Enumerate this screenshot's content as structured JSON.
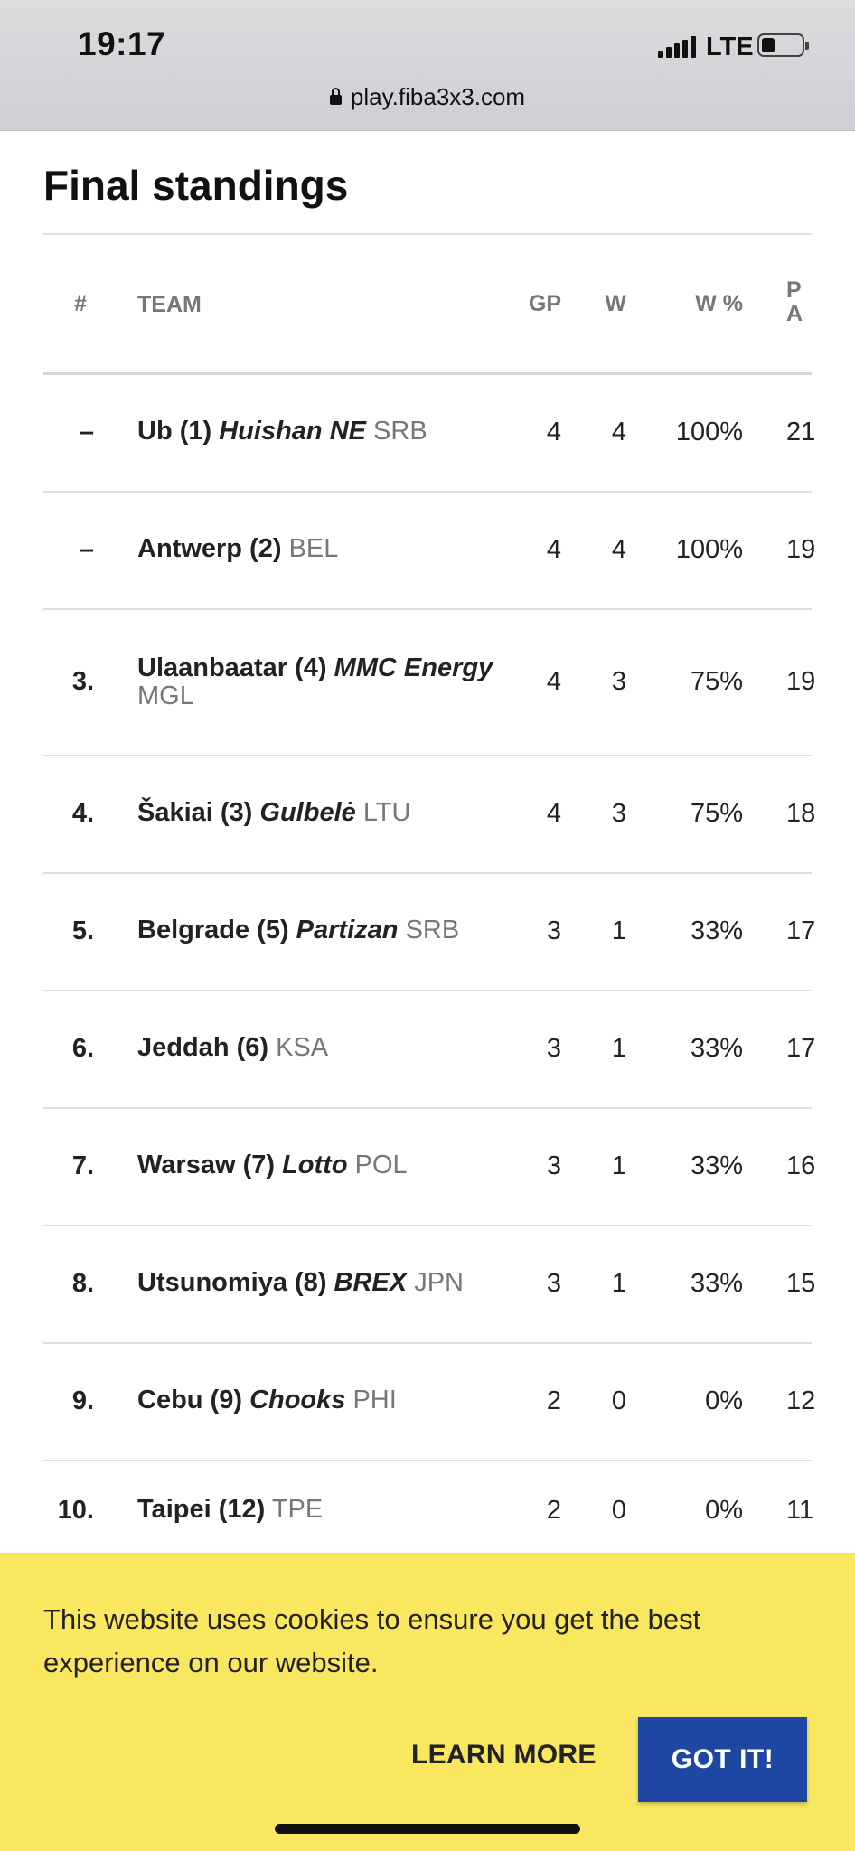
{
  "status_bar": {
    "time": "19:17",
    "network": "LTE"
  },
  "browser": {
    "url": "play.fiba3x3.com"
  },
  "page": {
    "title": "Final standings"
  },
  "table": {
    "headers": {
      "rank": "#",
      "team": "TEAM",
      "gp": "GP",
      "w": "W",
      "wp": "W %",
      "pts_line1": "P",
      "pts_line2": "A"
    },
    "rows": [
      {
        "rank": "–",
        "name": "Ub (1)",
        "sponsor": "Huishan NE",
        "country": "SRB",
        "gp": "4",
        "w": "4",
        "wp": "100%",
        "pts": "21"
      },
      {
        "rank": "–",
        "name": "Antwerp (2)",
        "sponsor": "",
        "country": "BEL",
        "gp": "4",
        "w": "4",
        "wp": "100%",
        "pts": "19"
      },
      {
        "rank": "3.",
        "name": "Ulaanbaatar (4)",
        "sponsor": "MMC Energy",
        "country": "MGL",
        "gp": "4",
        "w": "3",
        "wp": "75%",
        "pts": "19"
      },
      {
        "rank": "4.",
        "name": "Šakiai (3)",
        "sponsor": "Gulbelė",
        "country": "LTU",
        "gp": "4",
        "w": "3",
        "wp": "75%",
        "pts": "18"
      },
      {
        "rank": "5.",
        "name": "Belgrade (5)",
        "sponsor": "Partizan",
        "country": "SRB",
        "gp": "3",
        "w": "1",
        "wp": "33%",
        "pts": "17"
      },
      {
        "rank": "6.",
        "name": "Jeddah (6)",
        "sponsor": "",
        "country": "KSA",
        "gp": "3",
        "w": "1",
        "wp": "33%",
        "pts": "17"
      },
      {
        "rank": "7.",
        "name": "Warsaw (7)",
        "sponsor": "Lotto",
        "country": "POL",
        "gp": "3",
        "w": "1",
        "wp": "33%",
        "pts": "16"
      },
      {
        "rank": "8.",
        "name": "Utsunomiya (8)",
        "sponsor": "BREX",
        "country": "JPN",
        "gp": "3",
        "w": "1",
        "wp": "33%",
        "pts": "15"
      },
      {
        "rank": "9.",
        "name": "Cebu (9)",
        "sponsor": "Chooks",
        "country": "PHI",
        "gp": "2",
        "w": "0",
        "wp": "0%",
        "pts": "12"
      },
      {
        "rank": "10.",
        "name": "Taipei (12)",
        "sponsor": "",
        "country": "TPE",
        "gp": "2",
        "w": "0",
        "wp": "0%",
        "pts": "11"
      }
    ]
  },
  "cookie_banner": {
    "text": "This website uses cookies to ensure you get the best experience on our website.",
    "learn_more": "LEARN MORE",
    "accept": "GOT IT!"
  },
  "colors": {
    "banner": "#f8e75f",
    "accept_button": "#1d47a0"
  }
}
